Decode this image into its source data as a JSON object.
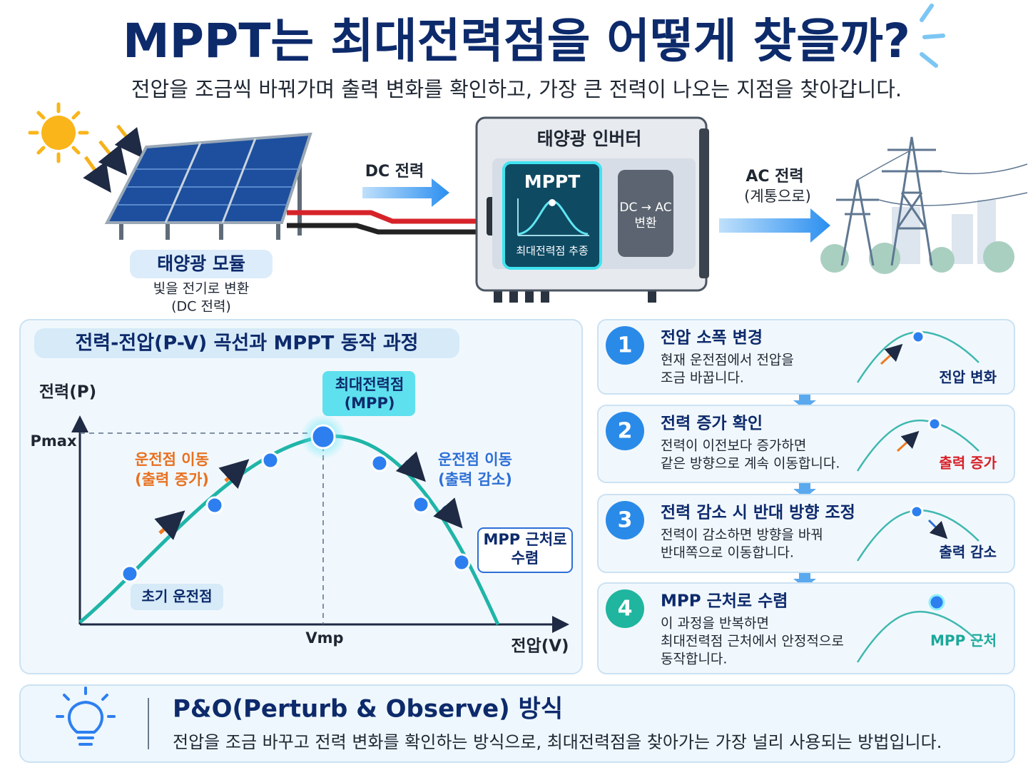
{
  "header": {
    "title": "MPPT는 최대전력점을 어떻게 찾을까?",
    "subtitle": "전압을 조금씩 바꿔가며 출력 변화를 확인하고, 가장 큰 전력이 나오는 지점을 찾아갑니다."
  },
  "system": {
    "module": {
      "label": "태양광 모듈",
      "desc": [
        "빛을 전기로 변환",
        "(DC 전력)"
      ]
    },
    "dc_label": "DC 전력",
    "inverter": {
      "title": "태양광 인버터",
      "mppt": "MPPT",
      "mppt_desc": "최대전력점 추종",
      "converter": [
        "DC → AC",
        "변환"
      ]
    },
    "ac_label": [
      "AC 전력",
      "(계통으로)"
    ]
  },
  "curve": {
    "title": "전력-전압(P-V) 곡선과 MPPT 동작 과정",
    "y_label": "전력(P)",
    "x_label": "전압(V)",
    "pmax": "Pmax",
    "vmp": "Vmp",
    "mpp_label": [
      "최대전력점",
      "(MPP)"
    ],
    "up_label": [
      "운전점 이동",
      "(출력 증가)"
    ],
    "down_label": [
      "운전점 이동",
      "(출력 감소)"
    ],
    "converge_label": [
      "MPP 근처로",
      "수렴"
    ],
    "start_label": "초기 운전점"
  },
  "steps": [
    {
      "number": "1",
      "title": "전압 소폭 변경",
      "desc": [
        "현재 운전점에서 전압을",
        "조금 바꿉니다."
      ],
      "tag": "전압 변화"
    },
    {
      "number": "2",
      "title": "전력 증가 확인",
      "desc": [
        "전력이 이전보다 증가하면",
        "같은 방향으로 계속 이동합니다."
      ],
      "tag": "출력 증가"
    },
    {
      "number": "3",
      "title": "전력 감소 시 반대 방향 조정",
      "desc": [
        "전력이 감소하면 방향을 바꿔",
        "반대쪽으로 이동합니다."
      ],
      "tag": "출력 감소"
    },
    {
      "number": "4",
      "title": "MPP 근처로 수렴",
      "desc": [
        "이 과정을 반복하면",
        "최대전력점 근처에서 안정적으로",
        "동작합니다."
      ],
      "tag": "MPP 근처"
    }
  ],
  "footer": {
    "title": "P&O(Perturb & Observe) 방식",
    "desc": "전압을 조금 바꾸고 전력 변화를 확인하는 방식으로, 최대전력점을 찾아가는 가장 널리 사용되는 방법입니다."
  }
}
